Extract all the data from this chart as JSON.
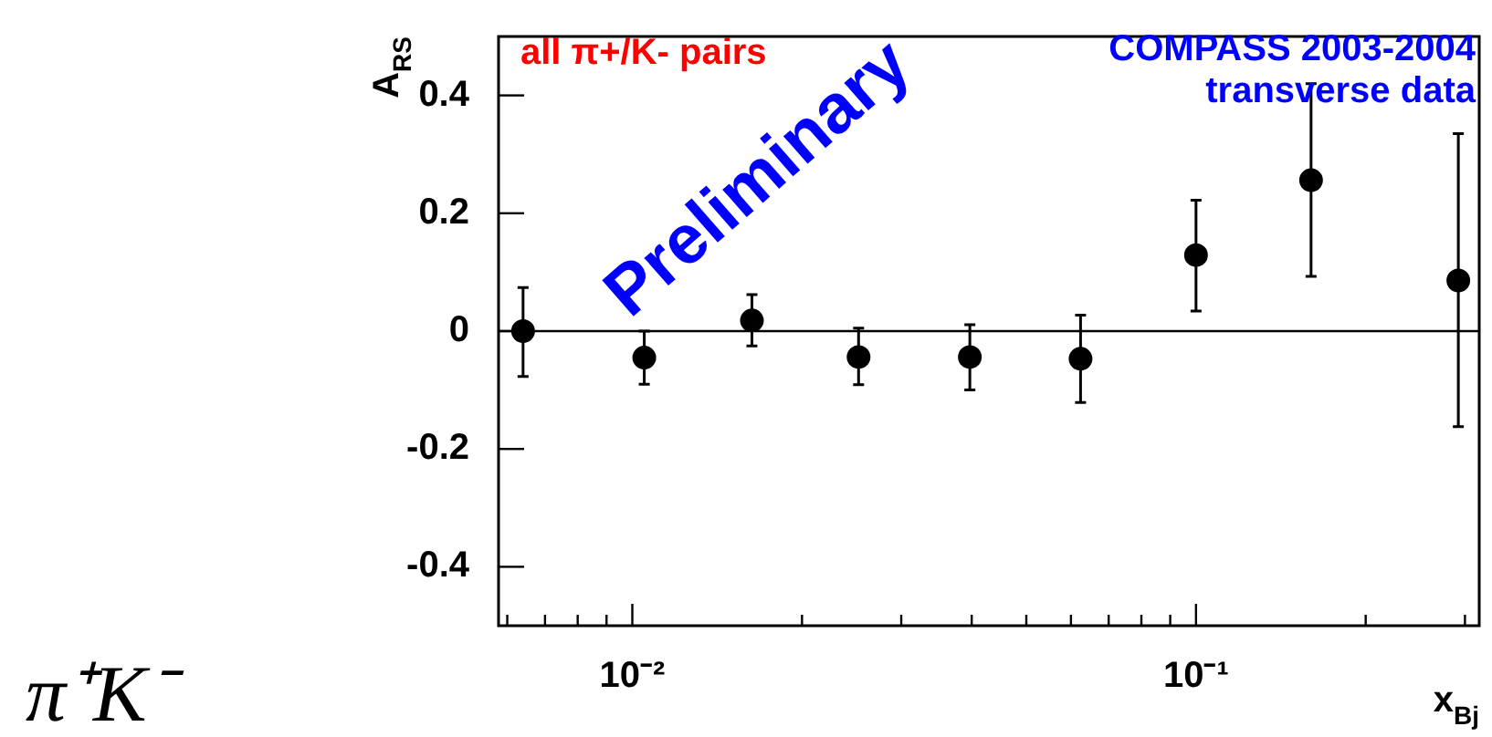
{
  "chart_data": {
    "type": "scatter",
    "xlabel": "x$_{Bj}$",
    "ylabel": "A$_{RS}$",
    "x": [
      0.0064,
      0.0105,
      0.0163,
      0.0252,
      0.0397,
      0.0624,
      0.1,
      0.16,
      0.292
    ],
    "series": [
      {
        "color": "#000000",
        "values": [
          0.0,
          -0.045,
          0.018,
          -0.044,
          -0.044,
          -0.047,
          0.129,
          0.256,
          0.086
        ],
        "errors": [
          [
            -0.077,
            0.074
          ],
          [
            -0.09,
            0.0
          ],
          [
            -0.025,
            0.062
          ],
          [
            -0.091,
            0.005
          ],
          [
            -0.1,
            0.011
          ],
          [
            -0.121,
            0.027
          ],
          [
            0.034,
            0.222
          ],
          [
            0.093,
            0.42
          ],
          [
            -0.162,
            0.335
          ]
        ]
      }
    ],
    "log": "x",
    "marker": "circle",
    "grid": false,
    "legend": false,
    "xlim": [
      0.00579,
      0.318
    ],
    "ylim": [
      -0.5,
      0.5
    ],
    "xticks": [
      {
        "value": 0.006,
        "label": null
      },
      {
        "value": 0.007,
        "label": null
      },
      {
        "value": 0.008,
        "label": null
      },
      {
        "value": 0.009,
        "label": null
      },
      {
        "value": 0.01,
        "label": "10⁻²"
      },
      {
        "value": 0.02,
        "label": null
      },
      {
        "value": 0.03,
        "label": null
      },
      {
        "value": 0.04,
        "label": null
      },
      {
        "value": 0.05,
        "label": null
      },
      {
        "value": 0.06,
        "label": null
      },
      {
        "value": 0.07,
        "label": null
      },
      {
        "value": 0.08,
        "label": null
      },
      {
        "value": 0.09,
        "label": null
      },
      {
        "value": 0.1,
        "label": "10⁻¹"
      },
      {
        "value": 0.2,
        "label": null
      },
      {
        "value": 0.3,
        "label": null
      }
    ],
    "yticks": [
      -0.4,
      -0.2,
      0,
      0.2,
      0.4
    ],
    "ref_lines": [
      {
        "axis": "y",
        "value": 0,
        "color": "#000000"
      }
    ],
    "annotations": [
      "all π+/K- pairs",
      "COMPASS 2003-2004",
      "transverse data",
      "Preliminary",
      "π⁺K⁻"
    ]
  }
}
